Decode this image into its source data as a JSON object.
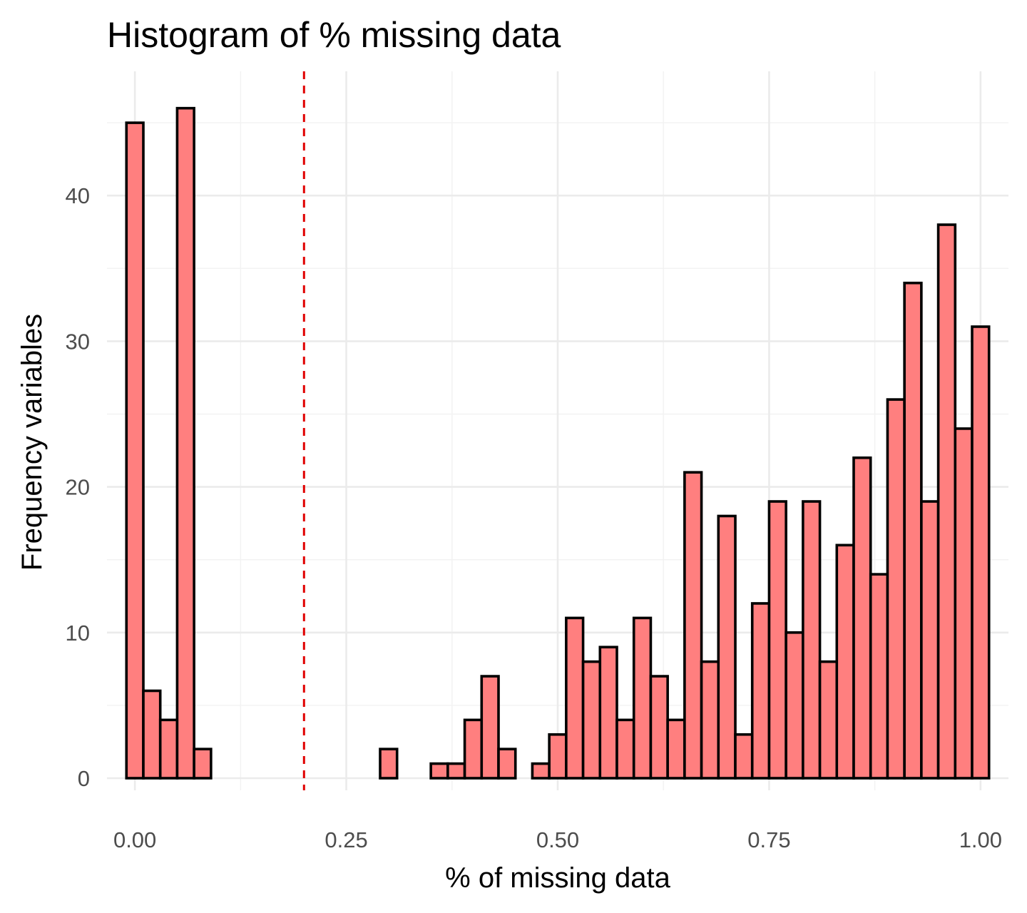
{
  "chart_data": {
    "type": "bar",
    "title": "Histogram of % missing data",
    "xlabel": "% of missing data",
    "ylabel": "Frequency variables",
    "xlim": [
      -0.033,
      1.033
    ],
    "ylim": [
      0,
      46
    ],
    "x_ticks": [
      0.0,
      0.25,
      0.5,
      0.75,
      1.0
    ],
    "x_tick_labels": [
      "0.00",
      "0.25",
      "0.50",
      "0.75",
      "1.00"
    ],
    "y_ticks": [
      0,
      10,
      20,
      30,
      40
    ],
    "y_tick_labels": [
      "0",
      "10",
      "20",
      "30",
      "40"
    ],
    "bin_width": 0.02,
    "bin_centers": [
      0.0,
      0.02,
      0.04,
      0.06,
      0.08,
      0.1,
      0.12,
      0.14,
      0.16,
      0.18,
      0.2,
      0.22,
      0.24,
      0.26,
      0.28,
      0.3,
      0.32,
      0.34,
      0.36,
      0.38,
      0.4,
      0.42,
      0.44,
      0.46,
      0.48,
      0.5,
      0.52,
      0.54,
      0.56,
      0.58,
      0.6,
      0.62,
      0.64,
      0.66,
      0.68,
      0.7,
      0.72,
      0.74,
      0.76,
      0.78,
      0.8,
      0.82,
      0.84,
      0.86,
      0.88,
      0.9,
      0.92,
      0.94,
      0.96,
      0.98,
      1.0
    ],
    "values": [
      45,
      6,
      4,
      46,
      2,
      0,
      0,
      0,
      0,
      0,
      0,
      0,
      0,
      0,
      0,
      2,
      0,
      0,
      1,
      1,
      4,
      7,
      2,
      0,
      1,
      3,
      11,
      8,
      9,
      4,
      11,
      7,
      4,
      21,
      8,
      18,
      3,
      12,
      19,
      10,
      19,
      8,
      16,
      22,
      14,
      26,
      34,
      19,
      38,
      24,
      31
    ],
    "reference_line": {
      "x": 0.2,
      "style": "dashed",
      "color": "#e00000"
    },
    "bar_fill": "#ff7f7f",
    "bar_edge": "#000000",
    "grid": true,
    "legend": "none"
  }
}
